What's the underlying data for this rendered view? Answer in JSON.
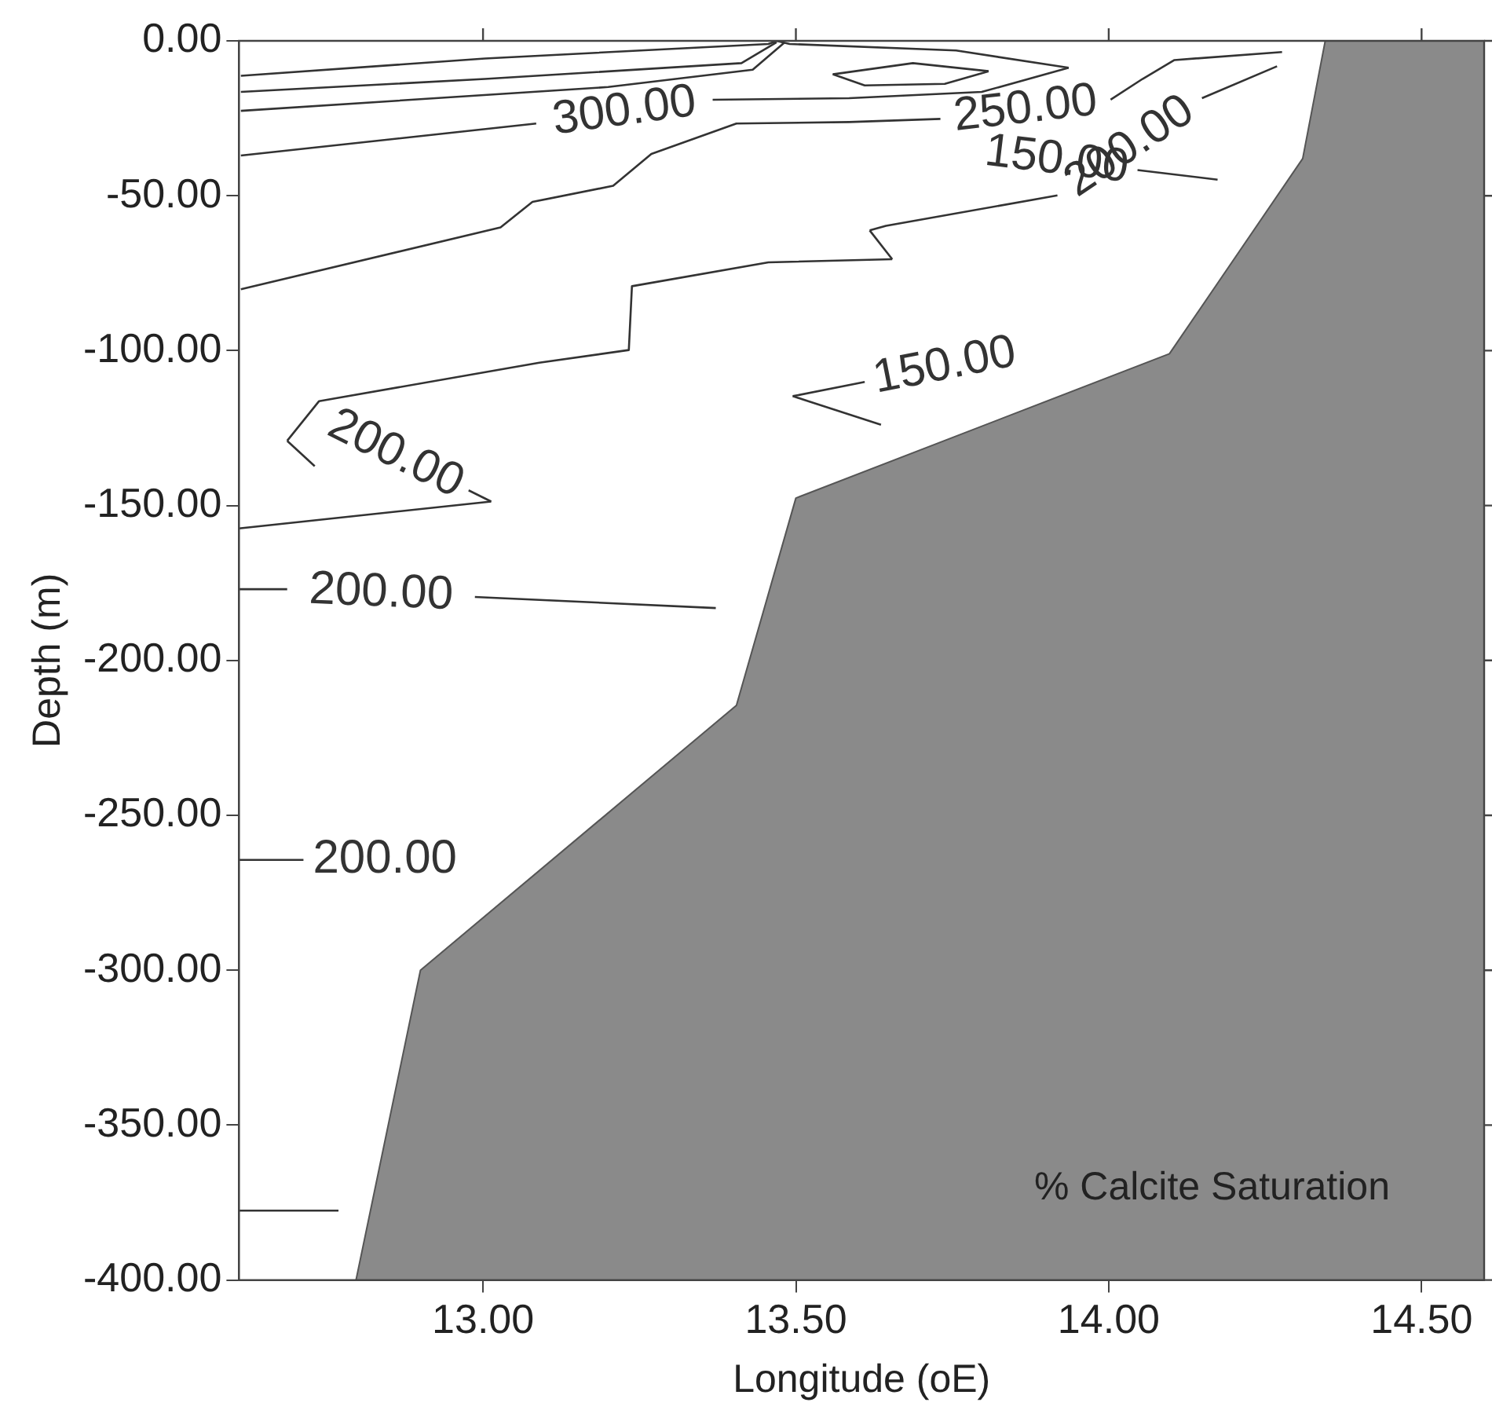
{
  "chart_data": {
    "type": "line",
    "xlabel": "Longitude (oE)",
    "ylabel": "Depth (m)",
    "xlim": [
      12.61,
      14.6
    ],
    "ylim": [
      -400,
      0
    ],
    "xticks": [
      {
        "value": 13,
        "label": "13.00"
      },
      {
        "value": 13.5,
        "label": "13.50"
      },
      {
        "value": 14,
        "label": "14.00"
      },
      {
        "value": 14.5,
        "label": "14.50"
      }
    ],
    "yticks": [
      {
        "value": 0,
        "label": "0.00"
      },
      {
        "value": -50,
        "label": "-50.00"
      },
      {
        "value": -100,
        "label": "-100.00"
      },
      {
        "value": -150,
        "label": "-150.00"
      },
      {
        "value": -200,
        "label": "-200.00"
      },
      {
        "value": -250,
        "label": "-250.00"
      },
      {
        "value": -300,
        "label": "-300.00"
      },
      {
        "value": -350,
        "label": "-350.00"
      },
      {
        "value": -400,
        "label": "-400.00"
      }
    ],
    "grid": false,
    "legend": false,
    "marker": "none",
    "line_style": "solid",
    "annotations": [
      "% Calcite Saturation"
    ],
    "series": [
      {
        "type": "area",
        "color": "#8a8a8a",
        "x": [
          12.797,
          12.9,
          13.405,
          13.5,
          14.097,
          14.31,
          14.346,
          14.6,
          14.6
        ],
        "values": [
          -400,
          -300,
          -214.5,
          -147.6,
          -101,
          -38,
          0,
          0,
          -400
        ]
      },
      {
        "type": "line",
        "color": "#333333",
        "x": [
          12.613,
          13.003,
          13.456,
          13.47
        ],
        "values": [
          -11.3,
          -5.7,
          -1.0,
          0
        ]
      },
      {
        "type": "line",
        "color": "#333333",
        "x": [
          12.613,
          13.003,
          13.413,
          13.469
        ],
        "values": [
          -16.5,
          -12.3,
          -7.2,
          -0.5
        ]
      },
      {
        "type": "line",
        "color": "#333333",
        "x": [
          12.613,
          13.2,
          13.431,
          13.482
        ],
        "values": [
          -22.6,
          -14.9,
          -9.3,
          -0.5
        ]
      },
      {
        "type": "line",
        "name": "300.00",
        "color": "#333333",
        "x": [
          12.613,
          13.085,
          null,
          13.367,
          13.585,
          13.797,
          13.936
        ],
        "values": [
          -37.0,
          -26.7,
          null,
          -19.0,
          -18.5,
          -16.5,
          -8.7
        ]
      },
      {
        "type": "line",
        "color": "#333333",
        "x": [
          13.469,
          13.49,
          13.756,
          13.936
        ],
        "values": [
          0,
          -1.0,
          -3.1,
          -8.7
        ]
      },
      {
        "type": "line",
        "color": "#333333",
        "x": [
          13.559,
          13.687,
          13.808
        ],
        "values": [
          -10.8,
          -7.2,
          -9.8
        ]
      },
      {
        "type": "line",
        "color": "#333333",
        "x": [
          13.559,
          13.61,
          13.738,
          13.808
        ],
        "values": [
          -10.8,
          -14.4,
          -13.9,
          -9.8
        ]
      },
      {
        "type": "line",
        "name": "250.00",
        "color": "#333333",
        "x": [
          12.613,
          13.028,
          13.079,
          13.208,
          13.269,
          13.405,
          13.585,
          13.731,
          null,
          14.003,
          14.054,
          14.105,
          14.277
        ],
        "values": [
          -80.2,
          -60.2,
          -52.0,
          -46.8,
          -36.5,
          -26.7,
          -26.2,
          -25.2,
          null,
          -19.0,
          -12.3,
          -6.2,
          -3.6
        ]
      },
      {
        "type": "line",
        "color": "#333333",
        "x": [
          12.61,
          13.013
        ],
        "values": [
          -157.4,
          -148.7
        ]
      },
      {
        "type": "line",
        "name": "200.00",
        "color": "#333333",
        "x": [
          null,
          12.977,
          13.013
        ],
        "values": [
          null,
          -145.1,
          -148.7
        ]
      },
      {
        "type": "line",
        "color": "#333333",
        "x": [
          12.687,
          12.731
        ],
        "values": [
          -129.1,
          -137.3
        ]
      },
      {
        "type": "line",
        "color": "#333333",
        "x": [
          12.687,
          12.738,
          13.09,
          13.233,
          13.238,
          13.456,
          13.654
        ],
        "values": [
          -129.1,
          -116.3,
          -103.9,
          -99.8,
          -79.2,
          -71.5,
          -70.5
        ]
      },
      {
        "type": "line",
        "color": "#333333",
        "x": [
          13.618,
          13.654
        ],
        "values": [
          -61.2,
          -70.5
        ]
      },
      {
        "type": "line",
        "name": "200.00",
        "color": "#333333",
        "x": [
          13.618,
          13.644,
          13.918,
          null,
          14.149,
          14.269
        ],
        "values": [
          -61.2,
          -59.7,
          -49.9,
          null,
          -18.5,
          -8.2
        ]
      },
      {
        "type": "line",
        "name": "150.00",
        "color": "#333333",
        "x": [
          null,
          14.046,
          14.174
        ],
        "values": [
          null,
          -41.7,
          -44.8
        ]
      },
      {
        "type": "line",
        "color": "#333333",
        "x": [
          13.495,
          13.636
        ],
        "values": [
          -114.7,
          -123.9
        ]
      },
      {
        "type": "line",
        "name": "150.00",
        "color": "#333333",
        "x": [
          13.495,
          13.61,
          null
        ],
        "values": [
          -114.7,
          -110.1,
          null
        ]
      },
      {
        "type": "line",
        "name": "200.00",
        "color": "#333333",
        "x": [
          12.61,
          12.687,
          null,
          12.987,
          13.372
        ],
        "values": [
          -177.0,
          -177.0,
          null,
          -179.5,
          -183.1
        ]
      },
      {
        "type": "line",
        "name": "200.00",
        "color": "#333333",
        "x": [
          12.61,
          12.713,
          null
        ],
        "values": [
          -264.4,
          -264.4,
          null
        ]
      },
      {
        "type": "line",
        "color": "#333333",
        "x": [
          12.61,
          12.769
        ],
        "values": [
          -377.6,
          -377.6
        ]
      }
    ]
  }
}
